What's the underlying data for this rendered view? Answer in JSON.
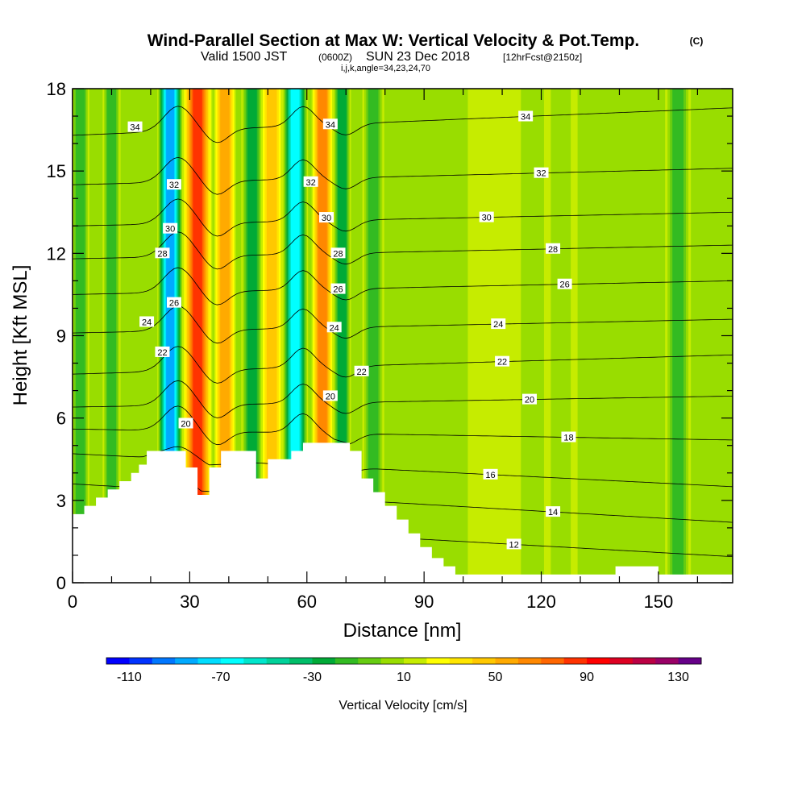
{
  "chart_data": {
    "type": "heatmap",
    "title": "Wind-Parallel Section at Max W: Vertical Velocity & Pot.Temp.",
    "title_units": "(C)",
    "subtitle_main": "Valid 1500 JST",
    "subtitle_z": "(0600Z)",
    "subtitle_date": "SUN 23 Dec 2018",
    "subtitle_fcst": "[12hrFcst@2150z]",
    "subtitle_indices": "i,j,k,angle=34,23,24,70",
    "xlabel": "Distance [nm]",
    "ylabel": "Height [Kft MSL]",
    "xlim": [
      0,
      169
    ],
    "ylim": [
      0,
      18
    ],
    "x_ticks": [
      0,
      30,
      60,
      90,
      120,
      150
    ],
    "x_tick_labels": [
      "0",
      "30",
      "60",
      "90",
      "120",
      "150"
    ],
    "y_ticks": [
      0,
      3,
      6,
      9,
      12,
      15,
      18
    ],
    "y_tick_labels": [
      "0",
      "3",
      "6",
      "9",
      "12",
      "15",
      "18"
    ],
    "colorbar": {
      "label": "Vertical Velocity [cm/s]",
      "min": -120,
      "max": 140,
      "step": 10,
      "tick_values": [
        -110,
        -70,
        -30,
        10,
        50,
        90,
        130
      ],
      "tick_labels": [
        "-110",
        "-70",
        "-30",
        "10",
        "50",
        "90",
        "130"
      ],
      "colors": [
        "#0000ff",
        "#0033ff",
        "#0077ff",
        "#00aaff",
        "#00ddff",
        "#00ffff",
        "#00e6cc",
        "#00d29a",
        "#00be69",
        "#00aa37",
        "#33bb22",
        "#66cc11",
        "#99dd00",
        "#c6ec00",
        "#ffff00",
        "#ffe500",
        "#ffc800",
        "#ffaa00",
        "#ff8800",
        "#ff6600",
        "#ff3300",
        "#ff0000",
        "#dd0022",
        "#bb0044",
        "#990066",
        "#660088"
      ]
    },
    "vertical_velocity_bands": [
      {
        "x": 2,
        "width": 3,
        "w": -20
      },
      {
        "x": 10,
        "width": 3,
        "w": -20
      },
      {
        "x": 25,
        "width": 5,
        "w": -90
      },
      {
        "x": 32,
        "width": 6,
        "w": 85
      },
      {
        "x": 39,
        "width": 4,
        "w": 50
      },
      {
        "x": 46,
        "width": 4,
        "w": -30
      },
      {
        "x": 51,
        "width": 4,
        "w": 45
      },
      {
        "x": 57,
        "width": 5,
        "w": -75
      },
      {
        "x": 64,
        "width": 4,
        "w": 60
      },
      {
        "x": 69,
        "width": 3,
        "w": -35
      },
      {
        "x": 77,
        "width": 4,
        "w": -25
      },
      {
        "x": 108,
        "width": 12,
        "w": 10
      },
      {
        "x": 125,
        "width": 7,
        "w": 0
      },
      {
        "x": 155,
        "width": 5,
        "w": -20
      }
    ],
    "terrain_heights": [
      {
        "x": 0,
        "h": 2.5
      },
      {
        "x": 3,
        "h": 2.8
      },
      {
        "x": 6,
        "h": 3.1
      },
      {
        "x": 9,
        "h": 3.4
      },
      {
        "x": 12,
        "h": 3.7
      },
      {
        "x": 15,
        "h": 4.0
      },
      {
        "x": 17,
        "h": 4.3
      },
      {
        "x": 19,
        "h": 4.8
      },
      {
        "x": 29,
        "h": 4.2
      },
      {
        "x": 32,
        "h": 3.2
      },
      {
        "x": 35,
        "h": 4.2
      },
      {
        "x": 38,
        "h": 4.8
      },
      {
        "x": 47,
        "h": 3.8
      },
      {
        "x": 50,
        "h": 4.5
      },
      {
        "x": 56,
        "h": 4.8
      },
      {
        "x": 59,
        "h": 5.1
      },
      {
        "x": 71,
        "h": 4.8
      },
      {
        "x": 74,
        "h": 3.8
      },
      {
        "x": 77,
        "h": 3.3
      },
      {
        "x": 80,
        "h": 2.8
      },
      {
        "x": 83,
        "h": 2.3
      },
      {
        "x": 86,
        "h": 1.8
      },
      {
        "x": 89,
        "h": 1.3
      },
      {
        "x": 92,
        "h": 0.9
      },
      {
        "x": 95,
        "h": 0.6
      },
      {
        "x": 98,
        "h": 0.3
      },
      {
        "x": 139,
        "h": 0.6
      },
      {
        "x": 150,
        "h": 0.3
      },
      {
        "x": 169,
        "h": 0.3
      }
    ],
    "theta_contours": [
      {
        "level": 12,
        "label": "12",
        "y_left": 2.3,
        "y_right": 0.95,
        "label_x": 113
      },
      {
        "level": 14,
        "label": "14",
        "y_left": 3.6,
        "y_right": 2.2,
        "label_x": 123
      },
      {
        "level": 16,
        "label": "16",
        "y_left": 4.7,
        "y_right": 3.5,
        "label_x": 107
      },
      {
        "level": 18,
        "label": "18",
        "y_left": 5.6,
        "y_right": 5.2,
        "label_x": 127
      },
      {
        "level": 20,
        "label": "20",
        "y_left": 6.4,
        "y_right": 6.8,
        "label_x": 117
      },
      {
        "level": 22,
        "label": "22",
        "y_left": 7.6,
        "y_right": 8.3,
        "label_x": 110
      },
      {
        "level": 24,
        "label": "24",
        "y_left": 9.1,
        "y_right": 9.6,
        "label_x": 109
      },
      {
        "level": 26,
        "label": "26",
        "y_left": 10.5,
        "y_right": 11.0,
        "label_x": 126
      },
      {
        "level": 28,
        "label": "28",
        "y_left": 11.8,
        "y_right": 12.3,
        "label_x": 123
      },
      {
        "level": 30,
        "label": "30",
        "y_left": 13.0,
        "y_right": 13.5,
        "label_x": 106
      },
      {
        "level": 32,
        "label": "32",
        "y_left": 14.5,
        "y_right": 15.1,
        "label_x": 120
      },
      {
        "level": 34,
        "label": "34",
        "y_left": 16.3,
        "y_right": 17.3,
        "label_x": 116
      }
    ],
    "contour_labels_mountain": [
      {
        "label": "34",
        "x": 16,
        "y": 16.6
      },
      {
        "label": "32",
        "x": 26,
        "y": 14.5
      },
      {
        "label": "30",
        "x": 25,
        "y": 12.9
      },
      {
        "label": "28",
        "x": 23,
        "y": 12.0
      },
      {
        "label": "26",
        "x": 26,
        "y": 10.2
      },
      {
        "label": "24",
        "x": 19,
        "y": 9.5
      },
      {
        "label": "22",
        "x": 23,
        "y": 8.4
      },
      {
        "label": "20",
        "x": 29,
        "y": 5.8
      },
      {
        "label": "34",
        "x": 66,
        "y": 16.7
      },
      {
        "label": "32",
        "x": 61,
        "y": 14.6
      },
      {
        "label": "30",
        "x": 65,
        "y": 13.3
      },
      {
        "label": "28",
        "x": 68,
        "y": 12.0
      },
      {
        "label": "26",
        "x": 68,
        "y": 10.7
      },
      {
        "label": "24",
        "x": 67,
        "y": 9.3
      },
      {
        "label": "22",
        "x": 74,
        "y": 7.7
      },
      {
        "label": "20",
        "x": 66,
        "y": 6.8
      }
    ]
  }
}
